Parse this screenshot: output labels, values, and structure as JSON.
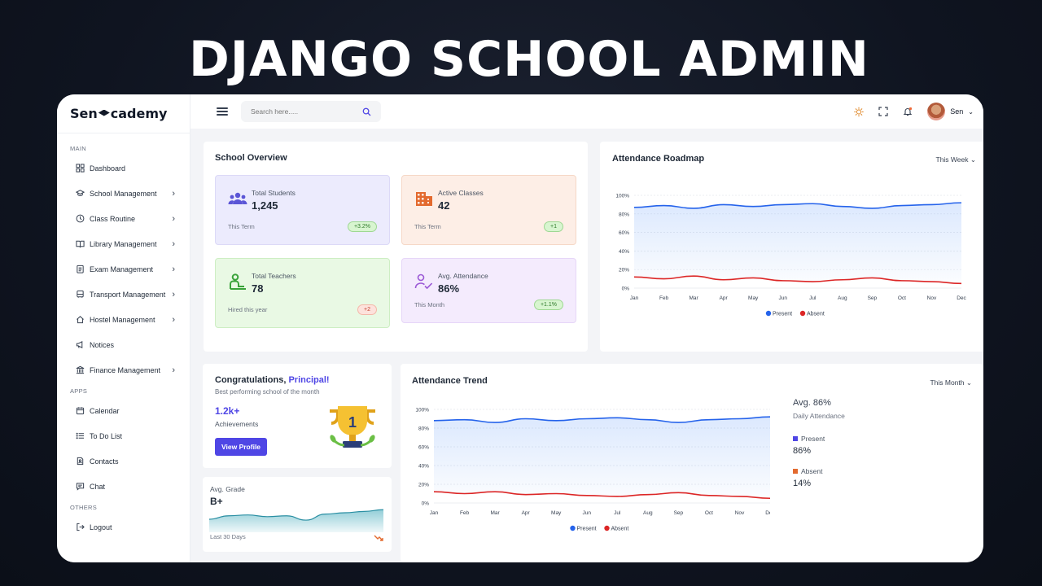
{
  "banner": "DJANGO SCHOOL ADMIN",
  "brand": {
    "left": "Sen",
    "right": "cademy"
  },
  "sidebar": {
    "sections": {
      "main": "MAIN",
      "apps": "APPS",
      "others": "OTHERS"
    },
    "main_items": [
      {
        "label": "Dashboard",
        "icon": "dashboard-icon"
      },
      {
        "label": "School Management",
        "icon": "graduation-cap-icon"
      },
      {
        "label": "Class Routine",
        "icon": "clock-icon"
      },
      {
        "label": "Library Management",
        "icon": "book-icon"
      },
      {
        "label": "Exam Management",
        "icon": "clipboard-icon"
      },
      {
        "label": "Transport Management",
        "icon": "bus-icon"
      },
      {
        "label": "Hostel Management",
        "icon": "home-icon"
      },
      {
        "label": "Notices",
        "icon": "megaphone-icon"
      },
      {
        "label": "Finance Management",
        "icon": "bank-icon"
      }
    ],
    "apps_items": [
      {
        "label": "Calendar",
        "icon": "calendar-icon"
      },
      {
        "label": "To Do List",
        "icon": "list-icon"
      },
      {
        "label": "Contacts",
        "icon": "contact-icon"
      },
      {
        "label": "Chat",
        "icon": "chat-icon"
      }
    ],
    "others_items": [
      {
        "label": "Logout",
        "icon": "logout-icon"
      }
    ]
  },
  "topbar": {
    "search_placeholder": "Search here.....",
    "user_name": "Sen"
  },
  "overview": {
    "title": "School Overview",
    "stats": [
      {
        "label": "Total Students",
        "value": "1,245",
        "sub": "This Term",
        "badge": "+3.2%"
      },
      {
        "label": "Active Classes",
        "value": "42",
        "sub": "This Term",
        "badge": "+1"
      },
      {
        "label": "Total Teachers",
        "value": "78",
        "sub": "Hired this year",
        "badge": "+2"
      },
      {
        "label": "Avg. Attendance",
        "value": "86%",
        "sub": "This Month",
        "badge": "+1.1%"
      }
    ]
  },
  "roadmap": {
    "title": "Attendance Roadmap",
    "filter": "This Week"
  },
  "congrats": {
    "title_prefix": "Congratulations, ",
    "title_name": "Principal!",
    "subtitle": "Best performing school of the month",
    "count": "1.2k+",
    "count_label": "Achievements",
    "button": "View Profile",
    "trophy_number": "1"
  },
  "grade": {
    "label": "Avg. Grade",
    "value": "B+",
    "period": "Last 30 Days"
  },
  "trend": {
    "title": "Attendance Trend",
    "filter": "This Month",
    "avg_label": "Avg. 86%",
    "avg_sub": "Daily Attendance",
    "present_label": "Present",
    "present_value": "86%",
    "absent_label": "Absent",
    "absent_value": "14%"
  },
  "chart_data": [
    {
      "type": "line",
      "title": "Attendance Roadmap",
      "categories": [
        "Jan",
        "Feb",
        "Mar",
        "Apr",
        "May",
        "Jun",
        "Jul",
        "Aug",
        "Sep",
        "Oct",
        "Nov",
        "Dec"
      ],
      "yticks": [
        "0%",
        "20%",
        "40%",
        "60%",
        "80%",
        "100%"
      ],
      "ylim": [
        0,
        100
      ],
      "series": [
        {
          "name": "Present",
          "color": "#2563eb",
          "values": [
            87,
            89,
            86,
            90,
            88,
            90,
            91,
            88,
            86,
            89,
            90,
            92
          ]
        },
        {
          "name": "Absent",
          "color": "#dc2626",
          "values": [
            12,
            10,
            13,
            9,
            11,
            8,
            7,
            9,
            11,
            8,
            7,
            5
          ]
        }
      ],
      "legend": "bottom"
    },
    {
      "type": "line",
      "title": "Attendance Trend",
      "categories": [
        "Jan",
        "Feb",
        "Mar",
        "Apr",
        "May",
        "Jun",
        "Jul",
        "Aug",
        "Sep",
        "Oct",
        "Nov",
        "Dec"
      ],
      "yticks": [
        "0%",
        "20%",
        "40%",
        "60%",
        "80%",
        "100%"
      ],
      "ylim": [
        0,
        100
      ],
      "series": [
        {
          "name": "Present",
          "color": "#2563eb",
          "values": [
            88,
            89,
            86,
            90,
            88,
            90,
            91,
            89,
            86,
            89,
            90,
            92
          ]
        },
        {
          "name": "Absent",
          "color": "#dc2626",
          "values": [
            12,
            10,
            12,
            9,
            10,
            8,
            7,
            9,
            11,
            8,
            7,
            5
          ]
        }
      ],
      "legend": "bottom"
    },
    {
      "type": "area",
      "title": "Avg. Grade",
      "values": [
        30,
        38,
        40,
        36,
        38,
        28,
        42,
        45,
        48,
        52
      ],
      "color": "#3ba6b8"
    }
  ],
  "colors": {
    "accent": "#4f46e5",
    "students_bg": "#ecebfd",
    "classes_bg": "#fdeee6",
    "teachers_bg": "#e9f9e4",
    "attendance_bg": "#f4ebfd"
  }
}
